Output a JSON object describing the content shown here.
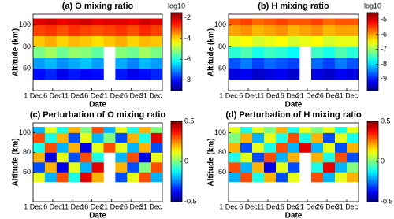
{
  "chart_data": [
    {
      "type": "heatmap",
      "title": "(a) O mixing ratio",
      "x_label": "Date",
      "y_label": "Altitude (km)",
      "colorbar_label": "log10",
      "colormap": "jet",
      "x": [
        1,
        4,
        7,
        10,
        13,
        16,
        19,
        22,
        25,
        28,
        31,
        34
      ],
      "y": [
        50,
        60,
        70,
        80,
        90,
        100,
        106
      ],
      "xlim": [
        1,
        34
      ],
      "ylim": [
        40,
        110
      ],
      "clim": [
        -9,
        -1.5
      ],
      "xticks": [
        {
          "value": 1,
          "label": "1 Dec"
        },
        {
          "value": 6,
          "label": "6 Dec"
        },
        {
          "value": 11,
          "label": "11 Dec"
        },
        {
          "value": 16,
          "label": "16 Dec"
        },
        {
          "value": 21,
          "label": "21 Dec"
        },
        {
          "value": 26,
          "label": "26 Dec"
        },
        {
          "value": 31,
          "label": "31 Dec"
        }
      ],
      "yticks": [
        60,
        80,
        100
      ],
      "cticks": [
        -2,
        -4,
        -6,
        -8
      ],
      "values": [
        [
          -8.0,
          -7.8,
          -8.2,
          -7.9,
          -8.1,
          -8.0,
          null,
          -7.9,
          -8.2,
          -8.0,
          -7.8
        ],
        [
          -6.9,
          -6.7,
          -7.0,
          -6.8,
          -6.6,
          -6.9,
          null,
          -6.8,
          -7.1,
          -6.7,
          -6.9
        ],
        [
          -5.3,
          -5.0,
          -5.4,
          -5.1,
          -5.2,
          -5.5,
          null,
          -5.2,
          -5.4,
          -5.0,
          -5.3
        ],
        [
          -3.9,
          -3.7,
          -4.0,
          -3.8,
          -3.9,
          -4.1,
          -3.9,
          -3.7,
          -4.0,
          -3.8,
          -3.9
        ],
        [
          -2.9,
          -2.8,
          -3.0,
          -2.8,
          -2.9,
          -3.0,
          -2.9,
          -2.8,
          -3.0,
          -2.7,
          -2.9
        ],
        [
          -2.2,
          -2.1,
          -2.3,
          -2.2,
          -2.1,
          -2.3,
          -2.2,
          -2.2,
          -2.3,
          -2.1,
          -2.2
        ]
      ]
    },
    {
      "type": "heatmap",
      "title": "(b) H mixing ratio",
      "x_label": "Date",
      "y_label": "Altitude (km)",
      "colorbar_label": "log10",
      "colormap": "jet",
      "x": [
        1,
        4,
        7,
        10,
        13,
        16,
        19,
        22,
        25,
        28,
        31,
        34
      ],
      "y": [
        50,
        60,
        70,
        80,
        90,
        100,
        106
      ],
      "xlim": [
        1,
        34
      ],
      "ylim": [
        40,
        110
      ],
      "clim": [
        -9.8,
        -4.5
      ],
      "xticks": [
        {
          "value": 1,
          "label": "1 Dec"
        },
        {
          "value": 6,
          "label": "6 Dec"
        },
        {
          "value": 11,
          "label": "11 Dec"
        },
        {
          "value": 16,
          "label": "16 Dec"
        },
        {
          "value": 21,
          "label": "21 Dec"
        },
        {
          "value": 26,
          "label": "26 Dec"
        },
        {
          "value": 31,
          "label": "31 Dec"
        }
      ],
      "yticks": [
        60,
        80,
        100
      ],
      "cticks": [
        -5,
        -6,
        -7,
        -8,
        -9
      ],
      "values": [
        [
          -9.3,
          -9.2,
          -9.4,
          -9.3,
          -9.2,
          -9.4,
          null,
          -9.3,
          -9.4,
          -9.2,
          -9.3
        ],
        [
          -8.7,
          -8.5,
          -8.8,
          -8.6,
          -8.7,
          -8.8,
          null,
          -8.6,
          -8.8,
          -8.5,
          -8.7
        ],
        [
          -7.6,
          -7.4,
          -7.7,
          -7.5,
          -7.6,
          -7.8,
          null,
          -7.5,
          -7.7,
          -7.4,
          -7.6
        ],
        [
          -6.6,
          -6.5,
          -6.7,
          -6.6,
          -6.5,
          -6.7,
          -6.6,
          -6.5,
          -6.7,
          -6.6,
          -6.6
        ],
        [
          -6.0,
          -5.9,
          -6.1,
          -6.0,
          -5.9,
          -6.1,
          -6.0,
          -5.9,
          -6.1,
          -6.0,
          -6.0
        ],
        [
          -5.6,
          -5.5,
          -5.7,
          -5.6,
          -5.5,
          -5.6,
          -5.6,
          -5.5,
          -5.7,
          -5.6,
          -5.6
        ]
      ]
    },
    {
      "type": "heatmap",
      "title": "(c) Perturbation of O mixing ratio",
      "x_label": "Date",
      "y_label": "Altitude (km)",
      "colormap": "jet",
      "x": [
        1,
        4,
        7,
        10,
        13,
        16,
        19,
        22,
        25,
        28,
        31,
        34
      ],
      "y": [
        50,
        60,
        70,
        80,
        90,
        100,
        106
      ],
      "xlim": [
        1,
        34
      ],
      "ylim": [
        30,
        110
      ],
      "clim": [
        -0.5,
        0.5
      ],
      "xticks": [
        {
          "value": 1,
          "label": "1 Dec"
        },
        {
          "value": 6,
          "label": "6 Dec"
        },
        {
          "value": 11,
          "label": "11 Dec"
        },
        {
          "value": 16,
          "label": "16 Dec"
        },
        {
          "value": 21,
          "label": "21 Dec"
        },
        {
          "value": 26,
          "label": "26 Dec"
        },
        {
          "value": 31,
          "label": "31 Dec"
        }
      ],
      "yticks": [
        60,
        80,
        100
      ],
      "cticks": [
        0.5,
        0,
        -0.5
      ],
      "values": [
        [
          0.1,
          -0.2,
          0.3,
          -0.1,
          0.4,
          0.2,
          null,
          -0.3,
          0.1,
          0.3,
          -0.2
        ],
        [
          -0.3,
          0.2,
          -0.4,
          0.1,
          -0.2,
          0.4,
          null,
          0.2,
          -0.3,
          0.0,
          0.3
        ],
        [
          0.2,
          -0.4,
          0.1,
          -0.3,
          0.3,
          -0.1,
          null,
          -0.2,
          0.3,
          -0.4,
          0.1
        ],
        [
          -0.1,
          0.3,
          -0.2,
          0.2,
          -0.4,
          0.1,
          0.3,
          0.1,
          -0.2,
          0.2,
          -0.3
        ],
        [
          0.3,
          -0.1,
          0.2,
          -0.3,
          0.1,
          -0.2,
          0.0,
          -0.3,
          0.2,
          -0.1,
          0.4
        ],
        [
          -0.2,
          0.1,
          -0.1,
          0.2,
          0.0,
          0.3,
          -0.2,
          0.1,
          -0.1,
          0.2,
          0.0
        ]
      ]
    },
    {
      "type": "heatmap",
      "title": "(d) Perturbation of H mixing ratio",
      "x_label": "Date",
      "y_label": "Altitude (km)",
      "colormap": "jet",
      "x": [
        1,
        4,
        7,
        10,
        13,
        16,
        19,
        22,
        25,
        28,
        31,
        34
      ],
      "y": [
        50,
        60,
        70,
        80,
        90,
        100,
        106
      ],
      "xlim": [
        1,
        34
      ],
      "ylim": [
        30,
        110
      ],
      "clim": [
        -0.5,
        0.5
      ],
      "xticks": [
        {
          "value": 1,
          "label": "1 Dec"
        },
        {
          "value": 6,
          "label": "6 Dec"
        },
        {
          "value": 11,
          "label": "11 Dec"
        },
        {
          "value": 16,
          "label": "16 Dec"
        },
        {
          "value": 21,
          "label": "21 Dec"
        },
        {
          "value": 26,
          "label": "26 Dec"
        },
        {
          "value": 31,
          "label": "31 Dec"
        }
      ],
      "yticks": [
        60,
        80,
        100
      ],
      "cticks": [
        0.5,
        0,
        -0.5
      ],
      "values": [
        [
          -0.2,
          0.3,
          -0.1,
          0.2,
          -0.3,
          0.1,
          null,
          0.3,
          -0.2,
          0.1,
          0.2
        ],
        [
          0.3,
          -0.2,
          0.2,
          -0.4,
          0.1,
          -0.3,
          null,
          -0.1,
          0.4,
          -0.2,
          0.0
        ],
        [
          -0.1,
          0.1,
          -0.3,
          0.3,
          -0.2,
          0.2,
          null,
          0.2,
          -0.1,
          0.3,
          -0.3
        ],
        [
          0.2,
          -0.3,
          0.1,
          -0.1,
          0.3,
          -0.2,
          0.4,
          -0.2,
          0.1,
          -0.3,
          0.2
        ],
        [
          0.0,
          0.2,
          -0.2,
          0.1,
          -0.1,
          0.3,
          -0.1,
          0.2,
          -0.3,
          0.1,
          -0.1
        ],
        [
          0.1,
          -0.1,
          0.1,
          0.0,
          0.2,
          -0.1,
          0.1,
          0.0,
          0.1,
          -0.1,
          0.1
        ]
      ]
    }
  ]
}
